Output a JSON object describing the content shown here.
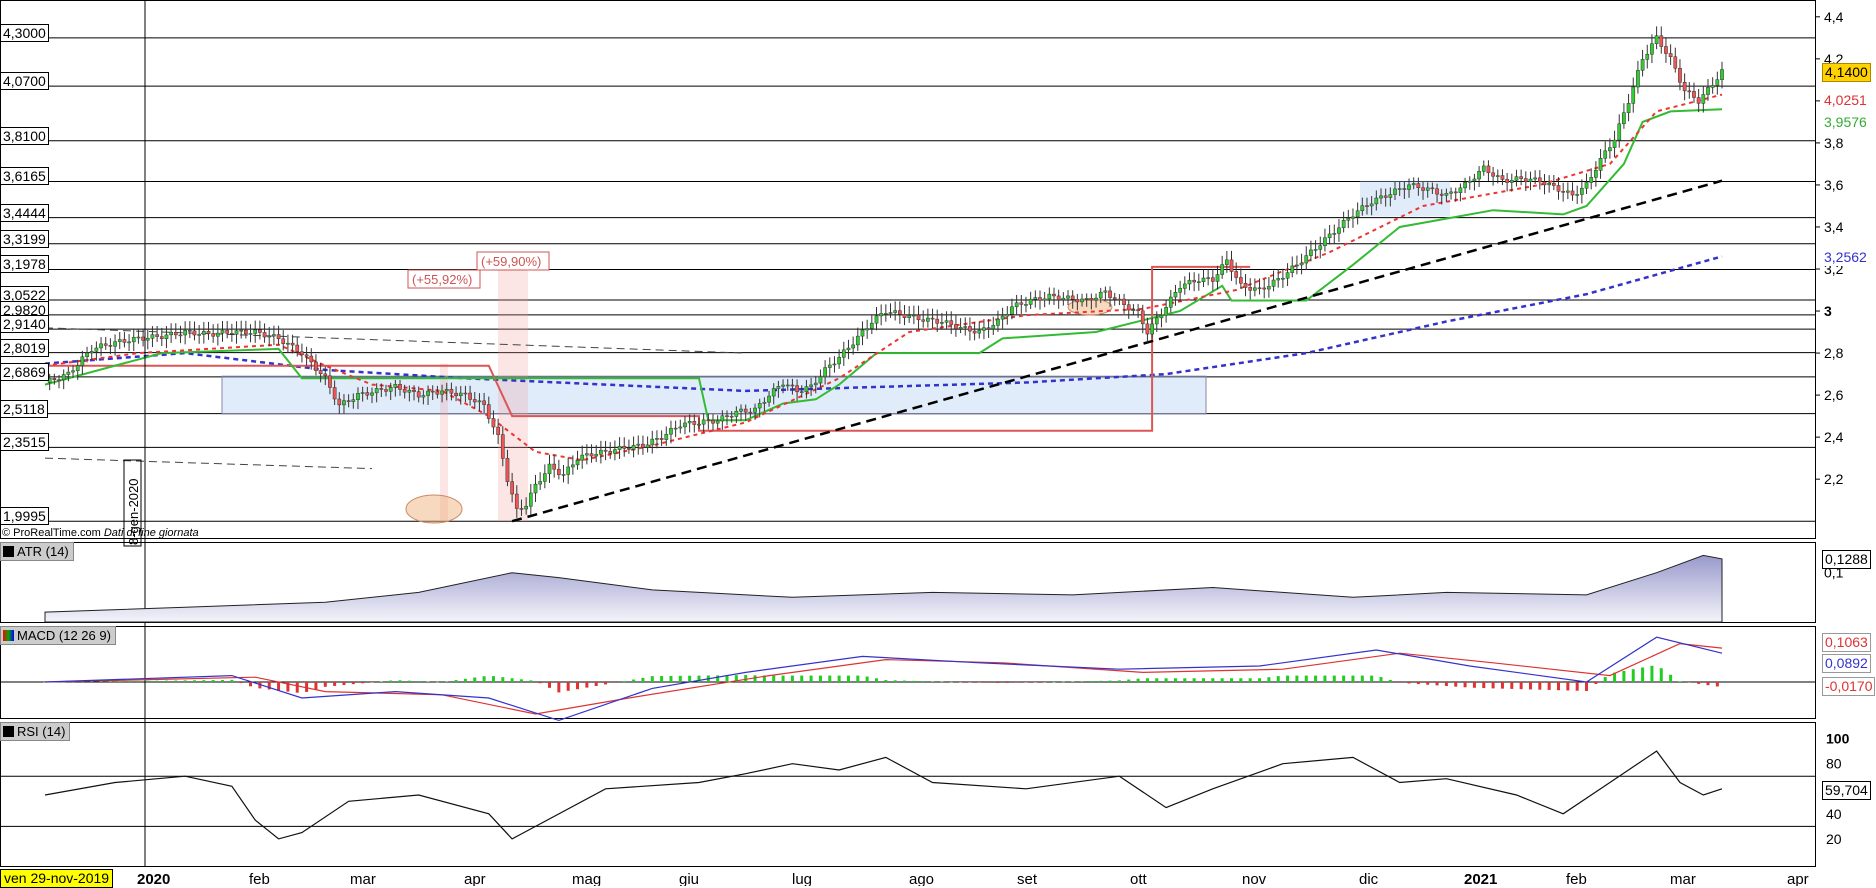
{
  "credit": {
    "brand": "© ProRealTime.com",
    "note": "Dati di fine giornata"
  },
  "date_tag": "ven 29-nov-2019",
  "vertical_marker": "8-gen-2020",
  "chart_data": [
    {
      "type": "candlestick",
      "panel": "price",
      "x_axis_labels": [
        "2020",
        "feb",
        "mar",
        "apr",
        "mag",
        "giu",
        "lug",
        "ago",
        "set",
        "ott",
        "nov",
        "dic",
        "2021",
        "feb",
        "mar",
        "apr"
      ],
      "y_axis_ticks": [
        "4,4",
        "4,2",
        "4",
        "3,8",
        "3,6",
        "3,4",
        "3,2",
        "3",
        "2,8",
        "2,6",
        "2,4",
        "2,2"
      ],
      "ylim": [
        1.92,
        4.48
      ],
      "horizontal_levels": [
        "4,3000",
        "4,0700",
        "3,8100",
        "3,6165",
        "3,4444",
        "3,3199",
        "3,1978",
        "3,0522",
        "2,9820",
        "2,9140",
        "2,8019",
        "2,6869",
        "2,5118",
        "2,3515",
        "1,9995"
      ],
      "last_values": {
        "price": "4,1400",
        "dotted_red": "4,0251",
        "green_stop": "3,9576",
        "dotted_blue": "3,2562"
      },
      "annotations": [
        "(+55,92%)",
        "(+59,90%)"
      ],
      "close_path": [
        [
          0,
          2.66
        ],
        [
          5,
          2.7
        ],
        [
          10,
          2.82
        ],
        [
          15,
          2.85
        ],
        [
          20,
          2.87
        ],
        [
          25,
          2.88
        ],
        [
          30,
          2.9
        ],
        [
          35,
          2.89
        ],
        [
          40,
          2.9
        ],
        [
          45,
          2.9
        ],
        [
          50,
          2.87
        ],
        [
          55,
          2.8
        ],
        [
          60,
          2.68
        ],
        [
          63,
          2.55
        ],
        [
          67,
          2.6
        ],
        [
          71,
          2.62
        ],
        [
          75,
          2.64
        ],
        [
          80,
          2.6
        ],
        [
          85,
          2.62
        ],
        [
          90,
          2.6
        ],
        [
          94,
          2.55
        ],
        [
          97,
          2.4
        ],
        [
          99,
          2.2
        ],
        [
          101,
          2.05
        ],
        [
          103,
          2.08
        ],
        [
          105,
          2.17
        ],
        [
          108,
          2.26
        ],
        [
          111,
          2.22
        ],
        [
          114,
          2.3
        ],
        [
          117,
          2.32
        ],
        [
          120,
          2.33
        ],
        [
          124,
          2.35
        ],
        [
          128,
          2.36
        ],
        [
          132,
          2.4
        ],
        [
          136,
          2.46
        ],
        [
          140,
          2.47
        ],
        [
          144,
          2.48
        ],
        [
          148,
          2.52
        ],
        [
          152,
          2.53
        ],
        [
          155,
          2.6
        ],
        [
          158,
          2.66
        ],
        [
          161,
          2.62
        ],
        [
          164,
          2.64
        ],
        [
          167,
          2.72
        ],
        [
          170,
          2.78
        ],
        [
          173,
          2.85
        ],
        [
          177,
          2.95
        ],
        [
          180,
          3.0
        ],
        [
          184,
          2.98
        ],
        [
          188,
          2.96
        ],
        [
          192,
          2.95
        ],
        [
          196,
          2.92
        ],
        [
          200,
          2.9
        ],
        [
          204,
          2.95
        ],
        [
          207,
          3.02
        ],
        [
          211,
          3.05
        ],
        [
          215,
          3.07
        ],
        [
          219,
          3.06
        ],
        [
          223,
          3.05
        ],
        [
          227,
          3.09
        ],
        [
          231,
          3.03
        ],
        [
          234,
          2.99
        ],
        [
          236,
          2.9
        ],
        [
          239,
          2.99
        ],
        [
          243,
          3.12
        ],
        [
          247,
          3.15
        ],
        [
          250,
          3.15
        ],
        [
          253,
          3.24
        ],
        [
          256,
          3.12
        ],
        [
          260,
          3.1
        ],
        [
          264,
          3.15
        ],
        [
          268,
          3.22
        ],
        [
          272,
          3.3
        ],
        [
          276,
          3.38
        ],
        [
          280,
          3.46
        ],
        [
          284,
          3.52
        ],
        [
          288,
          3.56
        ],
        [
          292,
          3.6
        ],
        [
          296,
          3.58
        ],
        [
          300,
          3.55
        ],
        [
          304,
          3.6
        ],
        [
          308,
          3.68
        ],
        [
          312,
          3.62
        ],
        [
          316,
          3.63
        ],
        [
          320,
          3.62
        ],
        [
          324,
          3.58
        ],
        [
          327,
          3.55
        ],
        [
          330,
          3.6
        ],
        [
          333,
          3.72
        ],
        [
          336,
          3.82
        ],
        [
          339,
          4.0
        ],
        [
          342,
          4.2
        ],
        [
          345,
          4.3
        ],
        [
          348,
          4.2
        ],
        [
          351,
          4.05
        ],
        [
          354,
          4.0
        ],
        [
          357,
          4.08
        ],
        [
          359,
          4.14
        ]
      ],
      "dotted_red_path": [
        [
          0,
          2.74
        ],
        [
          20,
          2.8
        ],
        [
          50,
          2.84
        ],
        [
          60,
          2.74
        ],
        [
          70,
          2.65
        ],
        [
          85,
          2.62
        ],
        [
          95,
          2.5
        ],
        [
          105,
          2.33
        ],
        [
          115,
          2.29
        ],
        [
          130,
          2.36
        ],
        [
          150,
          2.47
        ],
        [
          170,
          2.68
        ],
        [
          185,
          2.9
        ],
        [
          210,
          2.98
        ],
        [
          235,
          3.01
        ],
        [
          255,
          3.1
        ],
        [
          275,
          3.28
        ],
        [
          295,
          3.5
        ],
        [
          320,
          3.6
        ],
        [
          335,
          3.7
        ],
        [
          345,
          3.95
        ],
        [
          359,
          4.03
        ]
      ],
      "green_stop_path": [
        [
          0,
          2.65
        ],
        [
          25,
          2.8
        ],
        [
          50,
          2.82
        ],
        [
          55,
          2.68
        ],
        [
          90,
          2.68
        ],
        [
          140,
          2.68
        ],
        [
          142,
          2.48
        ],
        [
          150,
          2.48
        ],
        [
          158,
          2.56
        ],
        [
          165,
          2.58
        ],
        [
          170,
          2.65
        ],
        [
          178,
          2.8
        ],
        [
          200,
          2.8
        ],
        [
          205,
          2.87
        ],
        [
          225,
          2.9
        ],
        [
          243,
          3.0
        ],
        [
          252,
          3.12
        ],
        [
          254,
          3.05
        ],
        [
          270,
          3.05
        ],
        [
          280,
          3.22
        ],
        [
          290,
          3.4
        ],
        [
          300,
          3.44
        ],
        [
          310,
          3.48
        ],
        [
          325,
          3.46
        ],
        [
          330,
          3.5
        ],
        [
          338,
          3.7
        ],
        [
          342,
          3.9
        ],
        [
          348,
          3.95
        ],
        [
          359,
          3.96
        ]
      ],
      "dotted_blue_path": [
        [
          0,
          2.75
        ],
        [
          30,
          2.8
        ],
        [
          60,
          2.72
        ],
        [
          90,
          2.68
        ],
        [
          120,
          2.65
        ],
        [
          150,
          2.62
        ],
        [
          180,
          2.64
        ],
        [
          210,
          2.66
        ],
        [
          240,
          2.7
        ],
        [
          270,
          2.8
        ],
        [
          300,
          2.95
        ],
        [
          330,
          3.08
        ],
        [
          359,
          3.26
        ]
      ],
      "red_solid_path": [
        [
          0,
          2.74
        ],
        [
          20,
          2.74
        ],
        [
          40,
          2.74
        ],
        [
          55,
          2.74
        ],
        [
          60,
          2.74
        ],
        [
          95,
          2.74
        ],
        [
          100,
          2.5
        ],
        [
          140,
          2.5
        ],
        [
          140,
          2.43
        ],
        [
          237,
          2.43
        ],
        [
          237,
          3.21
        ],
        [
          258,
          3.21
        ]
      ],
      "trendline_black": [
        [
          100,
          2.0
        ],
        [
          359,
          3.62
        ]
      ],
      "dashed_resistance": [
        [
          0,
          2.92
        ],
        [
          150,
          2.8
        ]
      ],
      "dashed_support": [
        [
          0,
          2.3
        ],
        [
          70,
          2.25
        ]
      ]
    },
    {
      "type": "area",
      "panel": "ATR",
      "title": "ATR (14)",
      "last_value": "0,1288",
      "y_axis_ticks": [
        "0,1"
      ],
      "path": [
        [
          0,
          0.02
        ],
        [
          30,
          0.03
        ],
        [
          60,
          0.04
        ],
        [
          80,
          0.06
        ],
        [
          100,
          0.1
        ],
        [
          110,
          0.09
        ],
        [
          130,
          0.065
        ],
        [
          160,
          0.05
        ],
        [
          190,
          0.06
        ],
        [
          220,
          0.055
        ],
        [
          250,
          0.07
        ],
        [
          280,
          0.05
        ],
        [
          300,
          0.06
        ],
        [
          330,
          0.055
        ],
        [
          345,
          0.1
        ],
        [
          355,
          0.135
        ],
        [
          359,
          0.128
        ]
      ]
    },
    {
      "type": "line",
      "panel": "MACD",
      "title": "MACD (12 26 9)",
      "last_values": [
        "0,1063",
        "0,0892",
        "-0,0170"
      ],
      "macd_path": [
        [
          0,
          0.0
        ],
        [
          40,
          0.02
        ],
        [
          55,
          -0.05
        ],
        [
          75,
          -0.03
        ],
        [
          95,
          -0.05
        ],
        [
          110,
          -0.12
        ],
        [
          130,
          -0.02
        ],
        [
          150,
          0.03
        ],
        [
          175,
          0.08
        ],
        [
          200,
          0.06
        ],
        [
          230,
          0.04
        ],
        [
          260,
          0.05
        ],
        [
          285,
          0.1
        ],
        [
          305,
          0.05
        ],
        [
          330,
          0.0
        ],
        [
          345,
          0.14
        ],
        [
          359,
          0.09
        ]
      ],
      "signal_path": [
        [
          0,
          0.0
        ],
        [
          45,
          0.015
        ],
        [
          60,
          -0.03
        ],
        [
          85,
          -0.04
        ],
        [
          105,
          -0.1
        ],
        [
          125,
          -0.05
        ],
        [
          155,
          0.02
        ],
        [
          180,
          0.07
        ],
        [
          205,
          0.06
        ],
        [
          235,
          0.03
        ],
        [
          265,
          0.04
        ],
        [
          290,
          0.09
        ],
        [
          310,
          0.06
        ],
        [
          335,
          0.02
        ],
        [
          350,
          0.12
        ],
        [
          359,
          0.106
        ]
      ]
    },
    {
      "type": "line",
      "panel": "RSI",
      "title": "RSI (14)",
      "last_value": "59,704",
      "y_axis_ticks": [
        "100",
        "80",
        "60",
        "40",
        "20"
      ],
      "ylim": [
        0,
        100
      ],
      "path": [
        [
          0,
          55
        ],
        [
          15,
          65
        ],
        [
          30,
          70
        ],
        [
          40,
          62
        ],
        [
          45,
          35
        ],
        [
          50,
          20
        ],
        [
          55,
          25
        ],
        [
          65,
          50
        ],
        [
          80,
          55
        ],
        [
          95,
          40
        ],
        [
          100,
          20
        ],
        [
          105,
          30
        ],
        [
          120,
          60
        ],
        [
          140,
          65
        ],
        [
          150,
          72
        ],
        [
          160,
          80
        ],
        [
          170,
          75
        ],
        [
          180,
          85
        ],
        [
          190,
          65
        ],
        [
          210,
          60
        ],
        [
          230,
          70
        ],
        [
          240,
          45
        ],
        [
          250,
          60
        ],
        [
          265,
          80
        ],
        [
          280,
          85
        ],
        [
          290,
          65
        ],
        [
          300,
          68
        ],
        [
          315,
          55
        ],
        [
          325,
          40
        ],
        [
          335,
          65
        ],
        [
          345,
          90
        ],
        [
          350,
          65
        ],
        [
          355,
          55
        ],
        [
          359,
          60
        ]
      ]
    }
  ]
}
